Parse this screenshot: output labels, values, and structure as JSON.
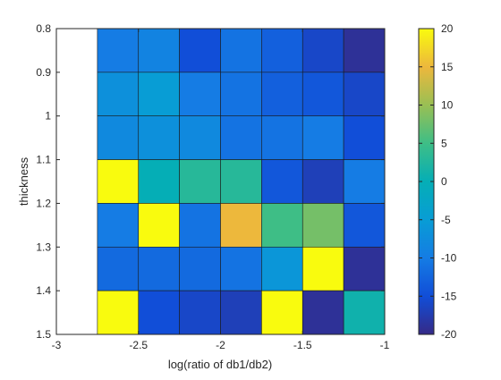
{
  "chart_data": {
    "type": "heatmap",
    "xlabel": "log(ratio of db1/db2)",
    "ylabel": "thickness",
    "xlim": [
      -3,
      -1
    ],
    "ylim": [
      1.5,
      0.8
    ],
    "x_ticks": [
      -3,
      -2.5,
      -2,
      -1.5,
      -1
    ],
    "x_tick_labels": [
      "-3",
      "-2.5",
      "-2",
      "-1.5",
      "-1"
    ],
    "y_ticks": [
      0.8,
      0.9,
      1.0,
      1.1,
      1.2,
      1.3,
      1.4,
      1.5
    ],
    "y_tick_labels": [
      "0.8",
      "0.9",
      "1",
      "1.1",
      "1.2",
      "1.3",
      "1.4",
      "1.5"
    ],
    "x_edges": [
      -2.75,
      -2.5,
      -2.25,
      -2.0,
      -1.75,
      -1.5,
      -1.25,
      -1.0
    ],
    "y_edges": [
      0.8,
      0.9,
      1.0,
      1.1,
      1.2,
      1.3,
      1.4,
      1.5
    ],
    "values": [
      [
        -10,
        -9,
        -15,
        -11,
        -13,
        -16,
        -19
      ],
      [
        -7,
        -5,
        -10,
        -11,
        -13,
        -14,
        -16
      ],
      [
        -8,
        -7,
        -8,
        -11,
        -11,
        -10,
        -15
      ],
      [
        20,
        0,
        3,
        3,
        -14,
        -17,
        -10
      ],
      [
        -10,
        20,
        -11,
        15,
        5,
        8,
        -14
      ],
      [
        -12,
        -12,
        -12,
        -11,
        -6,
        20,
        -19
      ],
      [
        20,
        -15,
        -16,
        -17,
        20,
        -19,
        1
      ]
    ],
    "clim": [
      -20,
      20
    ],
    "colorbar_ticks": [
      -20,
      -15,
      -10,
      -5,
      0,
      5,
      10,
      15,
      20
    ],
    "colorbar_tick_labels": [
      "-20",
      "-15",
      "-10",
      "-5",
      "0",
      "5",
      "10",
      "15",
      "20"
    ],
    "colormap": "parula",
    "grid": false
  }
}
